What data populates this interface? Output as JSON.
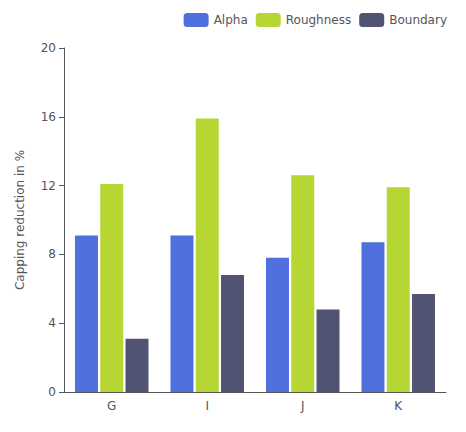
{
  "chart_data": {
    "type": "bar",
    "categories": [
      "G",
      "I",
      "J",
      "K"
    ],
    "series": [
      {
        "name": "Alpha",
        "values": [
          9.1,
          9.1,
          7.8,
          8.7
        ]
      },
      {
        "name": "Roughness",
        "values": [
          12.1,
          15.9,
          12.6,
          11.9
        ]
      },
      {
        "name": "Boundary",
        "values": [
          3.1,
          6.8,
          4.8,
          5.7
        ]
      }
    ],
    "ylabel": "Capping reduction in %",
    "ylim": [
      0,
      20
    ],
    "yticks": [
      0,
      4,
      8,
      12,
      16,
      20
    ],
    "grid": false,
    "legend": "upper right"
  }
}
